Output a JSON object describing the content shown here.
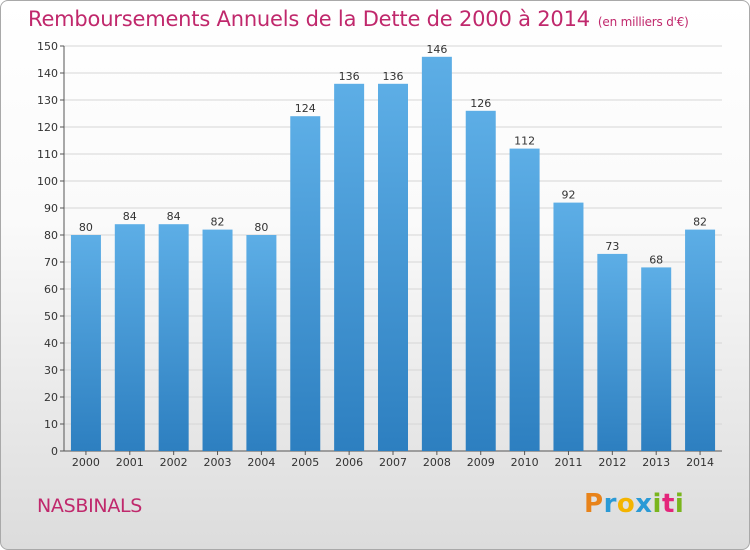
{
  "title": "Remboursements Annuels de la Dette de 2000 à 2014",
  "unit": "(en milliers d'€)",
  "town": "NASBINALS",
  "logo": {
    "letters": [
      "P",
      "r",
      "o",
      "x",
      "i",
      "t",
      "i"
    ],
    "colors": [
      "#e8831a",
      "#2a9ad6",
      "#f4b400",
      "#2a9ad6",
      "#7ab51d",
      "#e4257b",
      "#7ab51d"
    ]
  },
  "colors": {
    "bar_light": "#5daee6",
    "bar_dark": "#2d7fc0",
    "title": "#c0286c"
  },
  "chart_data": {
    "type": "bar",
    "categories": [
      "2000",
      "2001",
      "2002",
      "2003",
      "2004",
      "2005",
      "2006",
      "2007",
      "2008",
      "2009",
      "2010",
      "2011",
      "2012",
      "2013",
      "2014"
    ],
    "values": [
      80,
      84,
      84,
      82,
      80,
      124,
      136,
      136,
      146,
      126,
      112,
      92,
      73,
      68,
      82
    ],
    "ylim": [
      0,
      150
    ],
    "yticks": [
      0,
      10,
      20,
      30,
      40,
      50,
      60,
      70,
      80,
      90,
      100,
      110,
      120,
      130,
      140,
      150
    ],
    "grid": true
  }
}
